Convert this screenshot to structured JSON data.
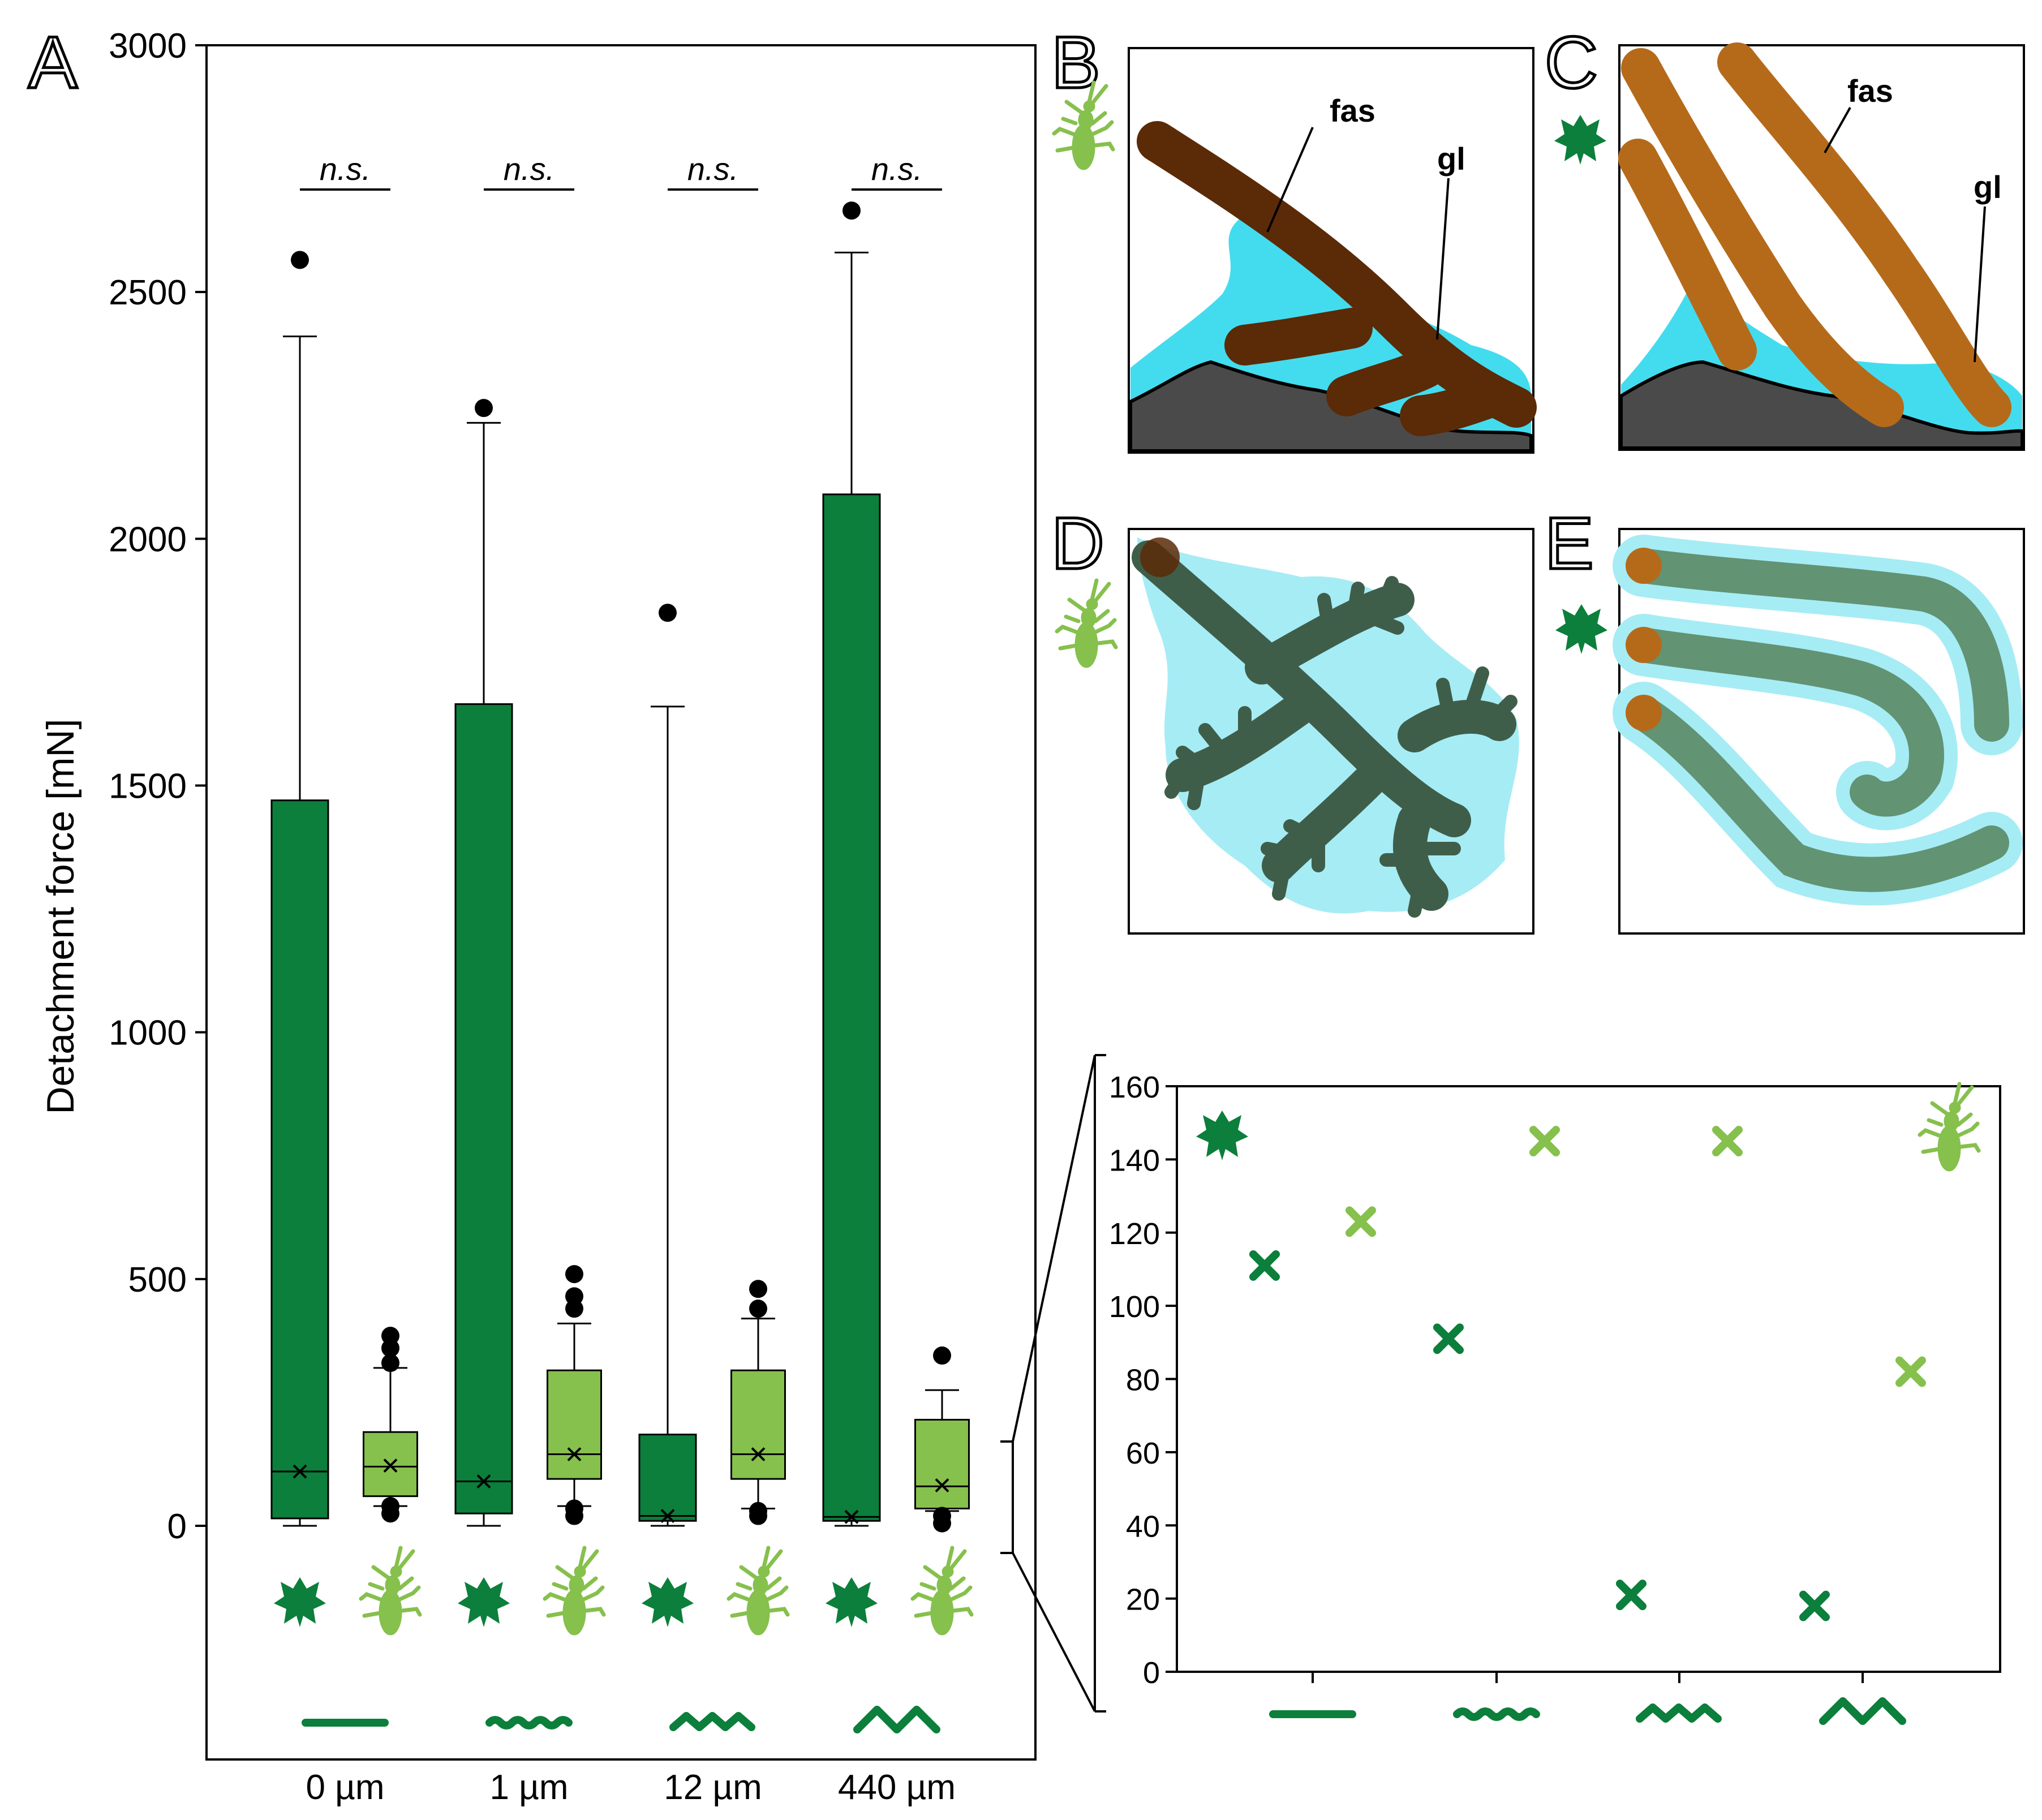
{
  "chart_data": [
    {
      "panel": "A",
      "type": "box",
      "ylabel": "Detachment force [mN]",
      "ylim": [
        0,
        3000
      ],
      "yticks": [
        "0",
        "500",
        "1000",
        "1500",
        "2000",
        "2500",
        "3000"
      ],
      "categories": [
        "0 µm",
        "1 µm",
        "12 µm",
        "440 µm"
      ],
      "significance": [
        "n.s.",
        "n.s.",
        "n.s.",
        "n.s."
      ],
      "series": [
        {
          "organism": "ivy leaf",
          "color": "#0b7f3b",
          "boxes": [
            {
              "min": 0,
              "q1": 15,
              "median": 110,
              "mean": 110,
              "q3": 1470,
              "whisker_high": 2410,
              "outliers": [
                2565
              ]
            },
            {
              "min": 0,
              "q1": 25,
              "median": 90,
              "mean": 90,
              "q3": 1665,
              "whisker_high": 2235,
              "outliers": [
                2265
              ]
            },
            {
              "min": 0,
              "q1": 10,
              "median": 20,
              "mean": 20,
              "q3": 185,
              "whisker_high": 1660,
              "outliers": [
                1850
              ]
            },
            {
              "min": 0,
              "q1": 10,
              "median": 18,
              "mean": 18,
              "q3": 2090,
              "whisker_high": 2580,
              "outliers": [
                2665
              ]
            }
          ]
        },
        {
          "organism": "stick insect",
          "color": "#86c04d",
          "boxes": [
            {
              "min": 40,
              "q1": 60,
              "median": 120,
              "mean": 122,
              "q3": 190,
              "whisker_high": 320,
              "outliers": [
                385,
                360,
                330,
                25,
                40
              ]
            },
            {
              "min": 40,
              "q1": 95,
              "median": 145,
              "mean": 145,
              "q3": 315,
              "whisker_high": 410,
              "outliers": [
                510,
                465,
                440,
                20,
                35
              ]
            },
            {
              "min": 35,
              "q1": 95,
              "median": 145,
              "mean": 145,
              "q3": 315,
              "whisker_high": 420,
              "outliers": [
                480,
                440,
                20,
                30
              ]
            },
            {
              "min": 30,
              "q1": 35,
              "median": 80,
              "mean": 82,
              "q3": 215,
              "whisker_high": 275,
              "outliers": [
                345,
                5,
                20
              ]
            }
          ]
        }
      ]
    },
    {
      "panel": "inset",
      "type": "scatter",
      "ylim": [
        0,
        160
      ],
      "yticks": [
        "0",
        "20",
        "40",
        "60",
        "80",
        "100",
        "120",
        "140",
        "160"
      ],
      "series": [
        {
          "organism": "ivy leaf",
          "color": "#0b7f3b",
          "values": [
            111,
            91,
            21,
            18
          ]
        },
        {
          "organism": "stick insect",
          "color": "#86c04d",
          "values": [
            123,
            145,
            145,
            82
          ]
        }
      ]
    }
  ],
  "panels": {
    "A": "A",
    "B": "B",
    "C": "C",
    "D": "D",
    "E": "E"
  },
  "annotations": {
    "fas": "fas",
    "gl": "gl"
  },
  "colors": {
    "ivy": "#0b7f3b",
    "insect": "#86c04d",
    "glue": "#43dcef",
    "glue_light": "#9ee7f3",
    "dark_fascicle": "#5b2a07",
    "light_fascicle": "#b56a1a",
    "substrate": "#4a4a4a",
    "spread_fascicle": "#3f5e4a"
  },
  "icons": [
    "ivy-leaf-icon",
    "stick-insect-icon",
    "flat-surface-icon",
    "fine-wave-icon",
    "medium-wave-icon",
    "coarse-wave-icon"
  ]
}
